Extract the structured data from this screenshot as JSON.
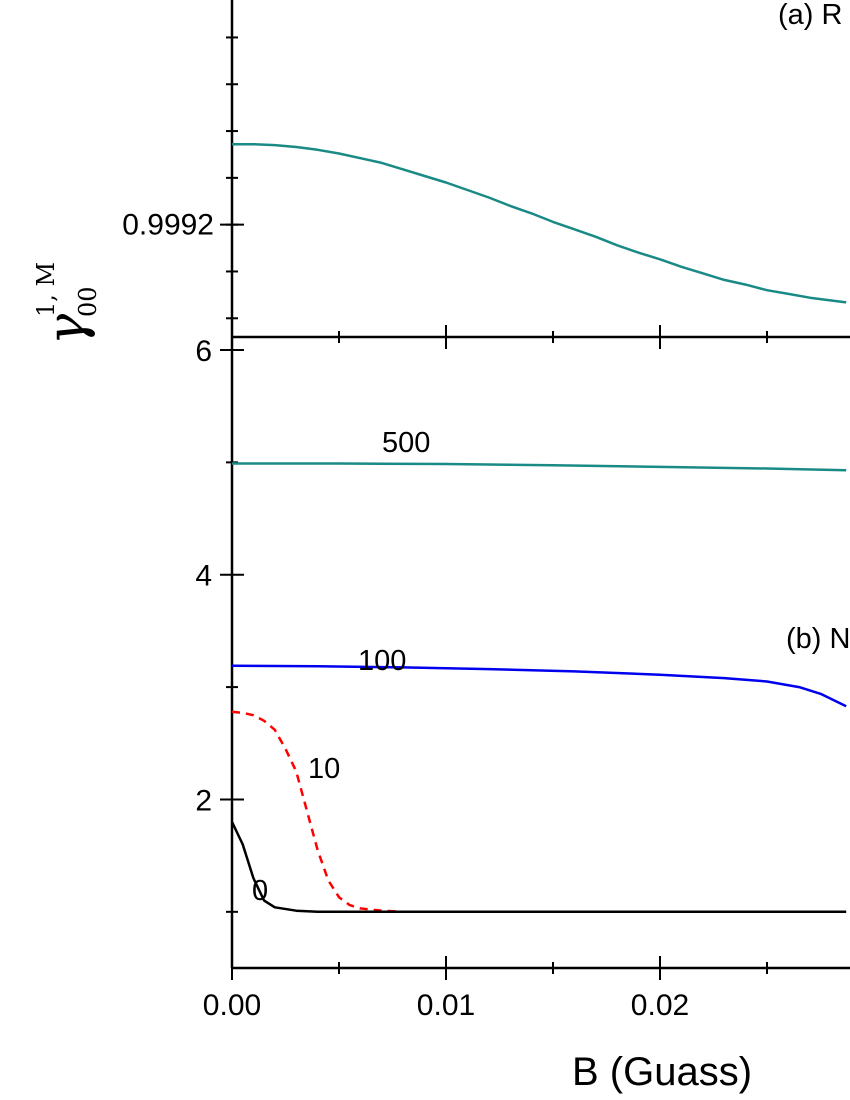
{
  "chart_data": {
    "type": "line",
    "xlabel": "B (Guass)",
    "ylabel": {
      "symbol": "γ",
      "sub": "00",
      "sup": "1, M"
    },
    "x_tick_labels": [
      "0.00",
      "0.01",
      "0.02",
      "0"
    ],
    "xlim": [
      0,
      0.0287
    ],
    "panels": [
      {
        "id": "a",
        "tag": "(a) R",
        "ylim": [
          0.99908,
          0.99944
        ],
        "y_ticks": [
          0.9992
        ],
        "y_tick_labels": [
          "0.9992"
        ],
        "series": [
          {
            "color": "#1a8a86",
            "dash": "solid",
            "x": [
              0,
              0.001,
              0.002,
              0.003,
              0.004,
              0.005,
              0.006,
              0.007,
              0.008,
              0.009,
              0.01,
              0.011,
              0.012,
              0.013,
              0.014,
              0.015,
              0.016,
              0.017,
              0.018,
              0.019,
              0.02,
              0.021,
              0.022,
              0.023,
              0.024,
              0.025,
              0.026,
              0.027,
              0.028,
              0.0287
            ],
            "y": [
              0.999286,
              0.999286,
              0.999285,
              0.999283,
              0.99928,
              0.999276,
              0.999271,
              0.999266,
              0.999259,
              0.999252,
              0.999245,
              0.999237,
              0.999229,
              0.99922,
              0.999212,
              0.999203,
              0.999195,
              0.999187,
              0.999178,
              0.99917,
              0.999163,
              0.999155,
              0.999148,
              0.999141,
              0.999136,
              0.99913,
              0.999126,
              0.999122,
              0.999119,
              0.999117
            ]
          }
        ]
      },
      {
        "id": "b",
        "tag": "(b) N",
        "ylim": [
          0.5,
          6
        ],
        "y_ticks": [
          2,
          4,
          6
        ],
        "y_tick_labels": [
          "2",
          "4",
          "6"
        ],
        "series": [
          {
            "name": "500",
            "color": "#1a8a86",
            "dash": "solid",
            "x": [
              0,
              0.005,
              0.01,
              0.015,
              0.02,
              0.025,
              0.0287
            ],
            "y": [
              4.99,
              4.99,
              4.985,
              4.975,
              4.96,
              4.945,
              4.93
            ]
          },
          {
            "name": "100",
            "color": "#0000ee",
            "dash": "solid",
            "x": [
              0,
              0.004,
              0.008,
              0.012,
              0.016,
              0.02,
              0.023,
              0.025,
              0.0265,
              0.0275,
              0.0287
            ],
            "y": [
              3.19,
              3.185,
              3.175,
              3.16,
              3.14,
              3.11,
              3.08,
              3.05,
              3.0,
              2.94,
              2.83
            ]
          },
          {
            "name": "10",
            "color": "#ff0000",
            "dash": "dashed",
            "x": [
              0,
              0.0005,
              0.001,
              0.0015,
              0.002,
              0.0025,
              0.003,
              0.0035,
              0.004,
              0.0045,
              0.005,
              0.0055,
              0.006,
              0.007,
              0.008,
              0.01,
              0.015,
              0.02,
              0.0287
            ],
            "y": [
              2.78,
              2.77,
              2.75,
              2.7,
              2.62,
              2.45,
              2.25,
              1.9,
              1.55,
              1.28,
              1.13,
              1.06,
              1.03,
              1.01,
              1.0,
              1.0,
              1.0,
              1.0,
              1.0
            ]
          },
          {
            "name": "0",
            "color": "#000000",
            "dash": "solid",
            "x": [
              0,
              0.0005,
              0.001,
              0.0015,
              0.002,
              0.003,
              0.004,
              0.005,
              0.01,
              0.02,
              0.0287
            ],
            "y": [
              1.8,
              1.6,
              1.3,
              1.1,
              1.04,
              1.01,
              1.0,
              1.0,
              1.0,
              1.0,
              1.0
            ]
          }
        ]
      }
    ]
  }
}
